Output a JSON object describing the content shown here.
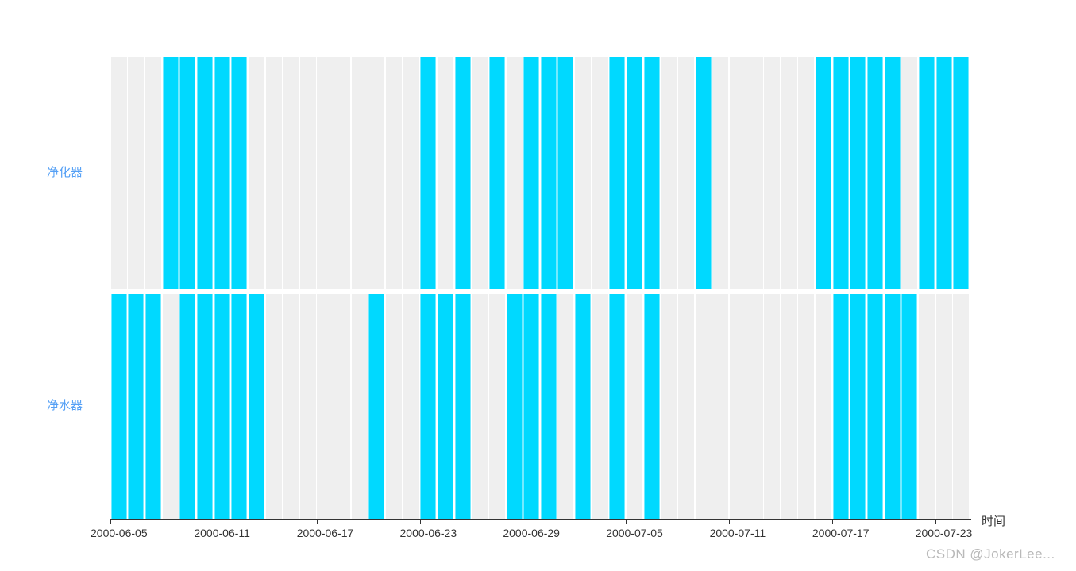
{
  "chart_data": {
    "type": "heatmap",
    "subtype": "device-usage-timeline-gantt",
    "title": "",
    "xlabel": "时间",
    "ylabel": "",
    "grid": false,
    "legend_position": "none",
    "x_categories": [
      "2000-06-05",
      "2000-06-06",
      "2000-06-07",
      "2000-06-08",
      "2000-06-09",
      "2000-06-10",
      "2000-06-11",
      "2000-06-12",
      "2000-06-13",
      "2000-06-14",
      "2000-06-15",
      "2000-06-16",
      "2000-06-17",
      "2000-06-18",
      "2000-06-19",
      "2000-06-20",
      "2000-06-21",
      "2000-06-22",
      "2000-06-23",
      "2000-06-24",
      "2000-06-25",
      "2000-06-26",
      "2000-06-27",
      "2000-06-28",
      "2000-06-29",
      "2000-06-30",
      "2000-07-01",
      "2000-07-02",
      "2000-07-03",
      "2000-07-04",
      "2000-07-05",
      "2000-07-06",
      "2000-07-07",
      "2000-07-08",
      "2000-07-09",
      "2000-07-10",
      "2000-07-11",
      "2000-07-12",
      "2000-07-13",
      "2000-07-14",
      "2000-07-15",
      "2000-07-16",
      "2000-07-17",
      "2000-07-18",
      "2000-07-19",
      "2000-07-20",
      "2000-07-21",
      "2000-07-22",
      "2000-07-23",
      "2000-07-24"
    ],
    "x_tick_days": [
      0,
      6,
      12,
      18,
      24,
      30,
      36,
      42,
      48
    ],
    "x_tick_labels": [
      "2000-06-05",
      "2000-06-11",
      "2000-06-17",
      "2000-06-23",
      "2000-06-29",
      "2000-07-05",
      "2000-07-11",
      "2000-07-17",
      "2000-07-23"
    ],
    "y_categories": [
      "净化器",
      "净水器"
    ],
    "series": [
      {
        "name": "净化器",
        "values": [
          0,
          0,
          0,
          1,
          1,
          1,
          1,
          1,
          0,
          0,
          0,
          0,
          0,
          0,
          0,
          0,
          0,
          0,
          1,
          0,
          1,
          0,
          1,
          0,
          1,
          1,
          1,
          0,
          0,
          1,
          1,
          1,
          0,
          0,
          1,
          0,
          0,
          0,
          0,
          0,
          0,
          1,
          1,
          1,
          1,
          1,
          0,
          1,
          1,
          1
        ]
      },
      {
        "name": "净水器",
        "values": [
          1,
          1,
          1,
          0,
          1,
          1,
          1,
          1,
          1,
          0,
          0,
          0,
          0,
          0,
          0,
          1,
          0,
          0,
          1,
          1,
          1,
          0,
          0,
          1,
          1,
          1,
          0,
          1,
          0,
          1,
          0,
          1,
          0,
          0,
          0,
          0,
          0,
          0,
          0,
          0,
          0,
          0,
          1,
          1,
          1,
          1,
          1,
          0,
          0,
          0
        ]
      }
    ],
    "colors": {
      "active": "#00d9ff",
      "inactive": "#efefef",
      "y_label": "#55a0f5",
      "axis": "#333333",
      "tick_label": "#333333"
    },
    "value_legend": {
      "1": "active",
      "0": "inactive"
    }
  },
  "watermark": "CSDN @JokerLee..."
}
